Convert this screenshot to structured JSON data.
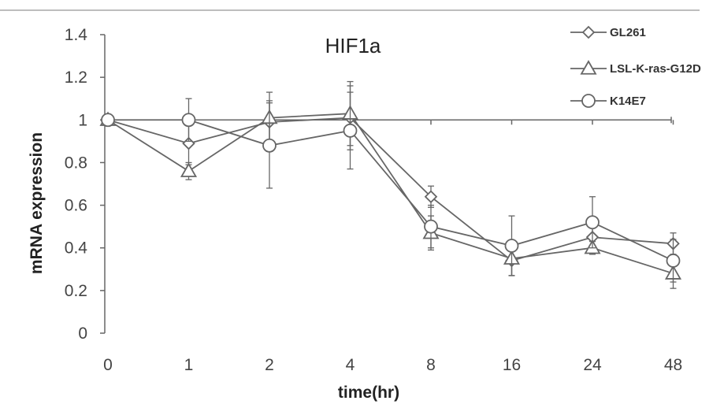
{
  "chart_data": {
    "type": "line",
    "title": "HIF1a",
    "xlabel": "time(hr)",
    "ylabel": "mRNA expression",
    "categories": [
      "0",
      "1",
      "2",
      "4",
      "8",
      "16",
      "24",
      "48"
    ],
    "yticks": [
      "0",
      "0.2",
      "0.4",
      "0.6",
      "0.8",
      "1",
      "1.2",
      "1.4"
    ],
    "ylim": [
      0,
      1.4
    ],
    "reference_line": 1,
    "legend_position": "top-right",
    "line_color": "#666666",
    "series": [
      {
        "name": "GL261",
        "marker": "diamond",
        "values": [
          1.0,
          0.89,
          0.99,
          1.01,
          0.64,
          0.34,
          0.45,
          0.42
        ],
        "errors": [
          0.0,
          0.1,
          0.1,
          0.15,
          0.05,
          0.07,
          0.08,
          0.05
        ]
      },
      {
        "name": "LSL-K-ras-G12D",
        "marker": "triangle",
        "values": [
          1.0,
          0.76,
          1.01,
          1.03,
          0.47,
          0.35,
          0.4,
          0.28
        ],
        "errors": [
          0.0,
          0.04,
          0.12,
          0.15,
          0.08,
          0.08,
          0.03,
          0.07
        ]
      },
      {
        "name": "K14E7",
        "marker": "circle",
        "values": [
          1.0,
          1.0,
          0.88,
          0.95,
          0.5,
          0.41,
          0.52,
          0.34
        ],
        "errors": [
          0.0,
          0.1,
          0.2,
          0.18,
          0.1,
          0.14,
          0.12,
          0.1
        ]
      }
    ]
  }
}
